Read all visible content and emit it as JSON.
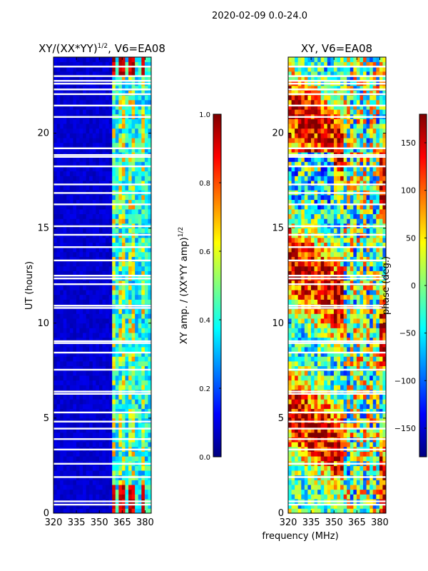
{
  "figure_title": "2020-02-09 0.0-24.0",
  "chart_data": [
    {
      "id": "amp",
      "type": "heatmap",
      "title": "XY/(XX*YY)",
      "title_exponent": "1/2",
      "title_suffix": ", V6=EA08",
      "xlabel": "",
      "ylabel": "UT (hours)",
      "xlim": [
        320,
        384
      ],
      "ylim": [
        0,
        24
      ],
      "xticks": [
        320,
        335,
        350,
        365,
        380
      ],
      "yticks": [
        0,
        5,
        10,
        15,
        20
      ],
      "colormap": "jet",
      "colorbar": {
        "label": "XY amp. / (XX*YY amp)",
        "label_exponent": "1/2",
        "range": [
          0.0,
          1.0
        ],
        "ticks": [
          0.0,
          0.2,
          0.4,
          0.6,
          0.8,
          1.0
        ]
      },
      "description_values": {
        "background_level": 0.05,
        "band_365_380_level": 0.5,
        "rfi_peaks_hours": [
          0.0,
          1.5,
          23.0,
          24.0
        ]
      }
    },
    {
      "id": "phase",
      "type": "heatmap",
      "title": "XY, V6=EA08",
      "xlabel": "frequency (MHz)",
      "ylabel": "",
      "xlim": [
        320,
        384
      ],
      "ylim": [
        0,
        24
      ],
      "xticks": [
        320,
        335,
        350,
        365,
        380
      ],
      "yticks": [
        0,
        5,
        10,
        15,
        20
      ],
      "colormap": "jet",
      "colorbar": {
        "label": "phase (deg.)",
        "range": [
          -180,
          180
        ],
        "ticks": [
          -150,
          -100,
          -50,
          0,
          50,
          100,
          150
        ]
      }
    }
  ],
  "flagged_hours": [
    0.45,
    0.62,
    1.9,
    2.6,
    3.35,
    3.9,
    4.45,
    4.82,
    5.3,
    6.28,
    6.4,
    7.55,
    8.45,
    8.95,
    9.05,
    10.8,
    10.92,
    12.05,
    12.35,
    12.5,
    13.3,
    14.0,
    14.65,
    15.1,
    16.25,
    16.85,
    17.3,
    18.25,
    18.75,
    18.85,
    19.2,
    20.85,
    21.45,
    22.05,
    22.3,
    22.6,
    22.75,
    23.0,
    23.5
  ]
}
